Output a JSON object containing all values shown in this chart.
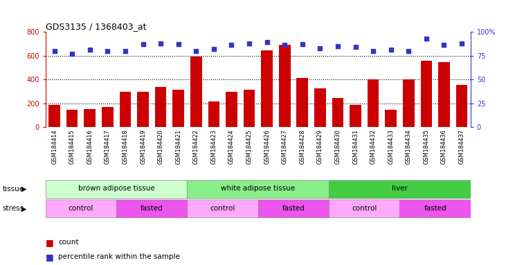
{
  "title": "GDS3135 / 1368403_at",
  "samples": [
    "GSM184414",
    "GSM184415",
    "GSM184416",
    "GSM184417",
    "GSM184418",
    "GSM184419",
    "GSM184420",
    "GSM184421",
    "GSM184422",
    "GSM184423",
    "GSM184424",
    "GSM184425",
    "GSM184426",
    "GSM184427",
    "GSM184428",
    "GSM184429",
    "GSM184430",
    "GSM184431",
    "GSM184432",
    "GSM184433",
    "GSM184434",
    "GSM184435",
    "GSM184436",
    "GSM184437"
  ],
  "counts": [
    185,
    145,
    150,
    170,
    295,
    295,
    335,
    315,
    595,
    215,
    295,
    315,
    645,
    690,
    410,
    325,
    245,
    185,
    400,
    145,
    400,
    555,
    545,
    355
  ],
  "percentiles": [
    80,
    77,
    81,
    80,
    80,
    87,
    88,
    87,
    80,
    82,
    86,
    88,
    89,
    86,
    87,
    83,
    85,
    84,
    80,
    81,
    80,
    93,
    86,
    88
  ],
  "bar_color": "#cc0000",
  "dot_color": "#3333cc",
  "ylim_left": [
    0,
    800
  ],
  "ylim_right": [
    0,
    100
  ],
  "yticks_left": [
    0,
    200,
    400,
    600,
    800
  ],
  "yticks_right": [
    0,
    25,
    50,
    75,
    100
  ],
  "grid_values": [
    200,
    400,
    600
  ],
  "grid_color": "#000000",
  "title_color": "#000000",
  "left_axis_color": "#cc0000",
  "right_axis_color": "#3333cc",
  "tissue_groups": [
    {
      "label": "brown adipose tissue",
      "start": 0,
      "end": 8,
      "color": "#ccffcc"
    },
    {
      "label": "white adipose tissue",
      "start": 8,
      "end": 16,
      "color": "#88ee88"
    },
    {
      "label": "liver",
      "start": 16,
      "end": 24,
      "color": "#44cc44"
    }
  ],
  "stress_groups": [
    {
      "label": "control",
      "start": 0,
      "end": 4,
      "color": "#ffaaff"
    },
    {
      "label": "fasted",
      "start": 4,
      "end": 8,
      "color": "#ee55ee"
    },
    {
      "label": "control",
      "start": 8,
      "end": 12,
      "color": "#ffaaff"
    },
    {
      "label": "fasted",
      "start": 12,
      "end": 16,
      "color": "#ee55ee"
    },
    {
      "label": "control",
      "start": 16,
      "end": 20,
      "color": "#ffaaff"
    },
    {
      "label": "fasted",
      "start": 20,
      "end": 24,
      "color": "#ee55ee"
    }
  ],
  "legend_count_color": "#cc0000",
  "legend_dot_color": "#3333cc",
  "background_color": "#ffffff",
  "plot_bg_color": "#ffffff"
}
